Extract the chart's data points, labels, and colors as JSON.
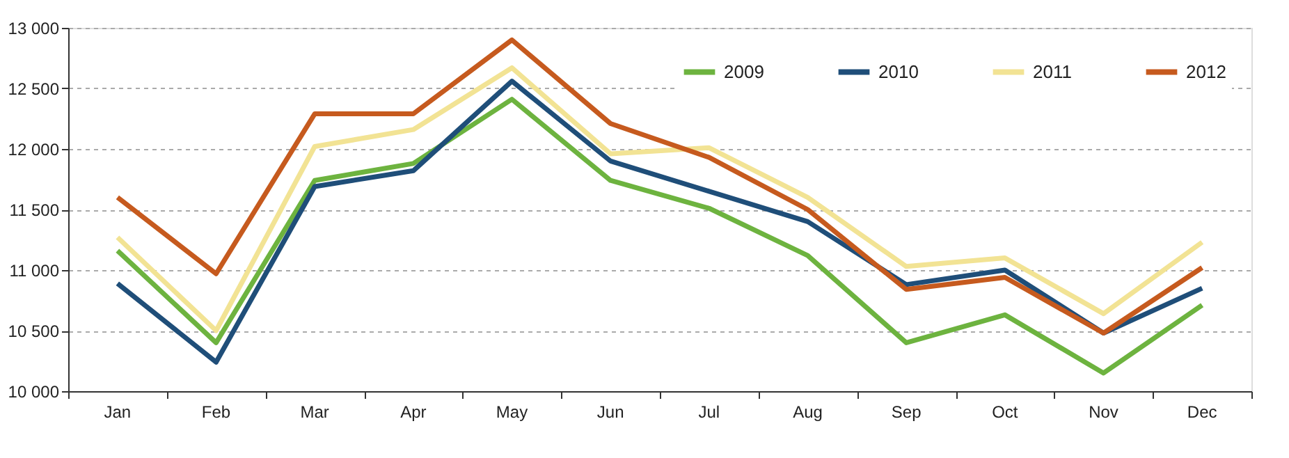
{
  "chart_data": {
    "type": "line",
    "categories": [
      "Jan",
      "Feb",
      "Mar",
      "Apr",
      "May",
      "Jun",
      "Jul",
      "Aug",
      "Sep",
      "Oct",
      "Nov",
      "Dec"
    ],
    "series": [
      {
        "name": "2009",
        "color": "#6db33f",
        "values": [
          11160,
          10400,
          11740,
          11880,
          12410,
          11740,
          11510,
          11120,
          10400,
          10630,
          10150,
          10710
        ]
      },
      {
        "name": "2010",
        "color": "#1f4e79",
        "values": [
          10890,
          10240,
          11690,
          11820,
          12560,
          11900,
          11650,
          11400,
          10880,
          11000,
          10480,
          10850
        ]
      },
      {
        "name": "2011",
        "color": "#f2e394",
        "values": [
          11270,
          10500,
          12020,
          12160,
          12670,
          11960,
          12010,
          11600,
          11030,
          11100,
          10640,
          11230
        ]
      },
      {
        "name": "2012",
        "color": "#c65a1e",
        "values": [
          11600,
          10970,
          12290,
          12290,
          12900,
          12210,
          11930,
          11500,
          10840,
          10940,
          10480,
          11020
        ]
      }
    ],
    "ylim": [
      10000,
      13000
    ],
    "yticks": [
      {
        "value": 10000,
        "label": "10 000"
      },
      {
        "value": 10500,
        "label": "10 500"
      },
      {
        "value": 11000,
        "label": "11 000"
      },
      {
        "value": 11500,
        "label": "11 500"
      },
      {
        "value": 12000,
        "label": "12 000"
      },
      {
        "value": 12500,
        "label": "12 500"
      },
      {
        "value": 13000,
        "label": "13 000"
      }
    ],
    "grid": "y",
    "legend": "top right",
    "marker": "none",
    "line_style": "solid"
  }
}
